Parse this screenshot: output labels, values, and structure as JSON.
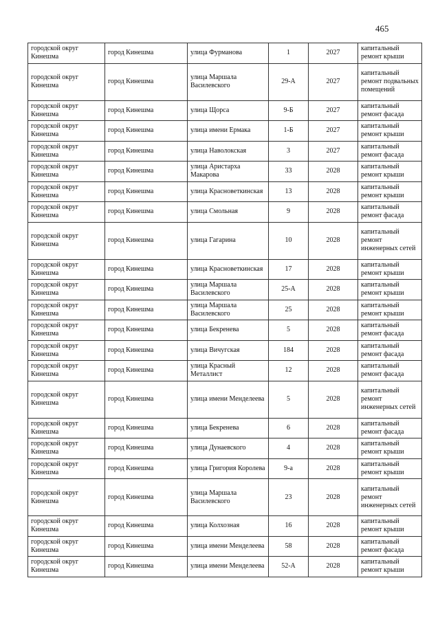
{
  "page_number": "465",
  "rows": [
    {
      "district": "городской округ Кинешма",
      "city": "город Кинешма",
      "street": "улица Фурманова",
      "house": "1",
      "year": "2027",
      "work": "капитальный ремонт крыши"
    },
    {
      "district": "городской округ Кинешма",
      "city": "город Кинешма",
      "street": "улица Маршала Василевского",
      "house": "29-А",
      "year": "2027",
      "work": "капитальный ремонт подвальных помещений"
    },
    {
      "district": "городской округ Кинешма",
      "city": "город Кинешма",
      "street": "улица Щорса",
      "house": "9-Б",
      "year": "2027",
      "work": "капитальный ремонт фасада"
    },
    {
      "district": "городской округ Кинешма",
      "city": "город Кинешма",
      "street": "улица имени Ермака",
      "house": "1-Б",
      "year": "2027",
      "work": "капитальный ремонт крыши"
    },
    {
      "district": "городской округ Кинешма",
      "city": "город Кинешма",
      "street": "улица Наволокская",
      "house": "3",
      "year": "2027",
      "work": "капитальный ремонт фасада"
    },
    {
      "district": "городской округ Кинешма",
      "city": "город Кинешма",
      "street": "улица Аристарха Макарова",
      "house": "33",
      "year": "2028",
      "work": "капитальный ремонт крыши"
    },
    {
      "district": "городской округ Кинешма",
      "city": "город Кинешма",
      "street": "улица Красноветкинская",
      "house": "13",
      "year": "2028",
      "work": "капитальный ремонт крыши"
    },
    {
      "district": "городской округ Кинешма",
      "city": "город Кинешма",
      "street": "улица Смольная",
      "house": "9",
      "year": "2028",
      "work": "капитальный ремонт фасада"
    },
    {
      "district": "городской округ Кинешма",
      "city": "город Кинешма",
      "street": "улица Гагарина",
      "house": "10",
      "year": "2028",
      "work": "капитальный ремонт инженерных сетей"
    },
    {
      "district": "городской округ Кинешма",
      "city": "город Кинешма",
      "street": "улица Красноветкинская",
      "house": "17",
      "year": "2028",
      "work": "капитальный ремонт крыши"
    },
    {
      "district": "городской округ Кинешма",
      "city": "город Кинешма",
      "street": "улица Маршала Василевского",
      "house": "25-А",
      "year": "2028",
      "work": "капитальный ремонт крыши"
    },
    {
      "district": "городской округ Кинешма",
      "city": "город Кинешма",
      "street": "улица Маршала Василевского",
      "house": "25",
      "year": "2028",
      "work": "капитальный ремонт крыши"
    },
    {
      "district": "городской округ Кинешма",
      "city": "город Кинешма",
      "street": "улица Бекренева",
      "house": "5",
      "year": "2028",
      "work": "капитальный ремонт фасада"
    },
    {
      "district": "городской округ Кинешма",
      "city": "город Кинешма",
      "street": "улица Вичугская",
      "house": "184",
      "year": "2028",
      "work": "капитальный ремонт фасада"
    },
    {
      "district": "городской округ Кинешма",
      "city": "город Кинешма",
      "street": "улица Красный Металлист",
      "house": "12",
      "year": "2028",
      "work": "капитальный ремонт фасада"
    },
    {
      "district": "городской округ Кинешма",
      "city": "город Кинешма",
      "street": "улица имени Менделеева",
      "house": "5",
      "year": "2028",
      "work": "капитальный ремонт инженерных сетей"
    },
    {
      "district": "городской округ Кинешма",
      "city": "город Кинешма",
      "street": "улица Бекренева",
      "house": "6",
      "year": "2028",
      "work": "капитальный ремонт фасада"
    },
    {
      "district": "городской округ Кинешма",
      "city": "город Кинешма",
      "street": "улица Дунаевского",
      "house": "4",
      "year": "2028",
      "work": "капитальный ремонт крыши"
    },
    {
      "district": "городской округ Кинешма",
      "city": "город Кинешма",
      "street": "улица Григория Королева",
      "house": "9-а",
      "year": "2028",
      "work": "капитальный ремонт крыши"
    },
    {
      "district": "городской округ Кинешма",
      "city": "город Кинешма",
      "street": "улица Маршала Василевского",
      "house": "23",
      "year": "2028",
      "work": "капитальный ремонт инженерных сетей"
    },
    {
      "district": "городской округ Кинешма",
      "city": "город Кинешма",
      "street": "улица Колхозная",
      "house": "16",
      "year": "2028",
      "work": "капитальный ремонт крыши"
    },
    {
      "district": "городской округ Кинешма",
      "city": "город Кинешма",
      "street": "улица имени Менделеева",
      "house": "58",
      "year": "2028",
      "work": "капитальный ремонт фасада"
    },
    {
      "district": "городской округ Кинешма",
      "city": "город Кинешма",
      "street": "улица имени Менделеева",
      "house": "52-А",
      "year": "2028",
      "work": "капитальный ремонт крыши"
    }
  ]
}
